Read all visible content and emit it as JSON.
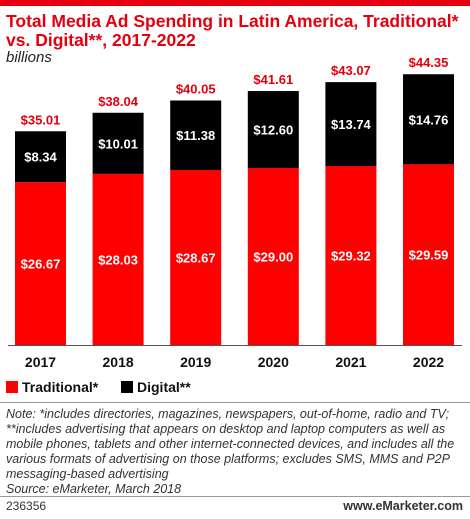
{
  "title": "Total Media Ad Spending in Latin America, Traditional* vs. Digital**, 2017-2022",
  "subtitle": "billions",
  "chart_data": {
    "type": "bar",
    "stacked": true,
    "categories": [
      "2017",
      "2018",
      "2019",
      "2020",
      "2021",
      "2022"
    ],
    "series": [
      {
        "name": "Traditional*",
        "color": "#ff0000",
        "values": [
          26.67,
          28.03,
          28.67,
          29.0,
          29.32,
          29.59
        ],
        "labels": [
          "$26.67",
          "$28.03",
          "$28.67",
          "$29.00",
          "$29.32",
          "$29.59"
        ]
      },
      {
        "name": "Digital**",
        "color": "#000000",
        "values": [
          8.34,
          10.01,
          11.38,
          12.6,
          13.74,
          14.76
        ],
        "labels": [
          "$8.34",
          "$10.01",
          "$11.38",
          "$12.60",
          "$13.74",
          "$14.76"
        ]
      }
    ],
    "totals": [
      35.01,
      38.04,
      40.05,
      41.61,
      43.07,
      44.35
    ],
    "total_labels": [
      "$35.01",
      "$38.04",
      "$40.05",
      "$41.61",
      "$43.07",
      "$44.35"
    ],
    "total_label_color": "#e4000f",
    "legend_position": "bottom-left"
  },
  "legend": [
    {
      "label": "Traditional*",
      "color": "#ff0000"
    },
    {
      "label": "Digital**",
      "color": "#000000"
    }
  ],
  "note": "Note: *includes directories, magazines, newspapers, out-of-home, radio and TV; **includes advertising that appears on desktop and laptop computers as well as mobile phones, tablets and other internet-connected devices, and includes all the various formats of advertising on those platforms; excludes SMS, MMS and P2P messaging-based advertising",
  "source": "Source: eMarketer, March 2018",
  "footer": {
    "id": "236356",
    "brand": "www.eMarketer.com"
  }
}
